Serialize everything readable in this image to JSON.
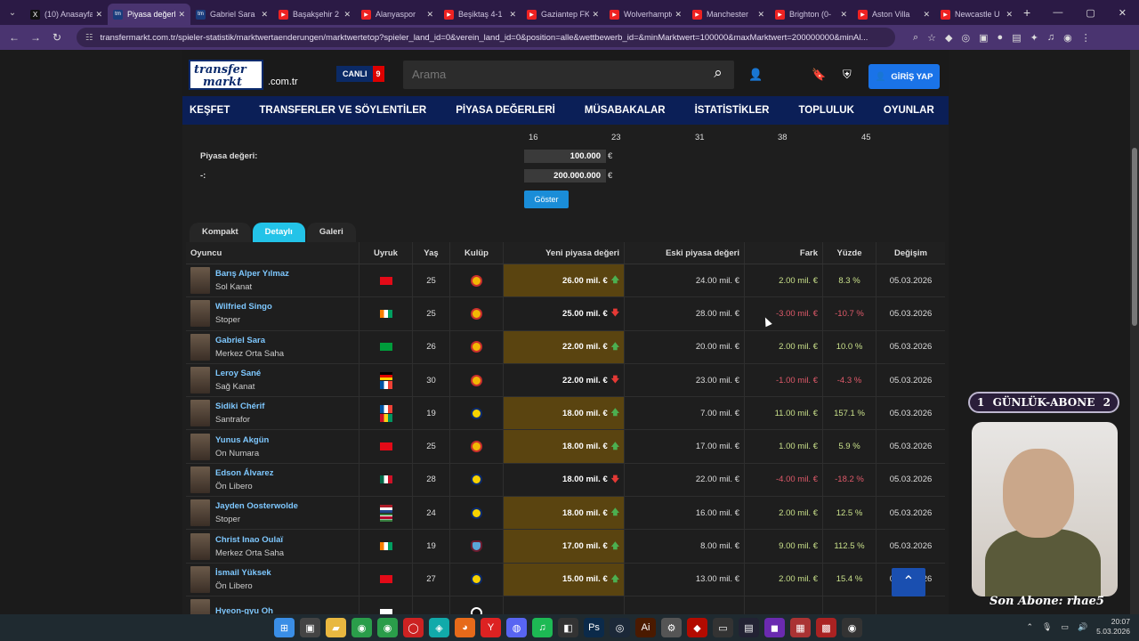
{
  "tabs": [
    {
      "label": "(10) Anasayfa",
      "favicon": "x"
    },
    {
      "label": "Piyasa değerleri",
      "favicon": "tm",
      "active": true
    },
    {
      "label": "Gabriel Sara",
      "favicon": "tm"
    },
    {
      "label": "Başakşehir 2",
      "favicon": "yt"
    },
    {
      "label": "Alanyaspor",
      "favicon": "yt"
    },
    {
      "label": "Beşiktaş 4-1",
      "favicon": "yt"
    },
    {
      "label": "Gaziantep FK",
      "favicon": "yt"
    },
    {
      "label": "Wolverhampton",
      "favicon": "yt"
    },
    {
      "label": "Manchester",
      "favicon": "yt"
    },
    {
      "label": "Brighton (0-",
      "favicon": "yt"
    },
    {
      "label": "Aston Villa",
      "favicon": "yt"
    },
    {
      "label": "Newcastle U",
      "favicon": "yt"
    }
  ],
  "url": "transfermarkt.com.tr/spieler-statistik/marktwertaenderungen/marktwertetop?spieler_land_id=0&verein_land_id=0&position=alle&wettbewerb_id=&minMarktwert=100000&maxMarktwert=200000000&minAl...",
  "header": {
    "logo_line1": "transfer",
    "logo_line2": "markt",
    "logo_domain": ".com.tr",
    "live_label": "CANLI",
    "live_count": "9",
    "search_placeholder": "Arama",
    "login_label": "GİRİŞ YAP"
  },
  "nav": [
    "KEŞFET",
    "TRANSFERLER VE SÖYLENTİLER",
    "PİYASA DEĞERLERİ",
    "MÜSABAKALAR",
    "İSTATİSTİKLER",
    "TOPLULUK",
    "OYUNLAR"
  ],
  "filter": {
    "ticks": [
      "16",
      "23",
      "31",
      "38",
      "45"
    ],
    "market_label": "Piyasa değeri:",
    "range_sep": "-:",
    "min_value": "100.000",
    "max_value": "200.000.000",
    "currency": "€",
    "show_button": "Göster"
  },
  "view_tabs": [
    "Kompakt",
    "Detaylı",
    "Galeri"
  ],
  "columns": [
    "Oyuncu",
    "Uyruk",
    "Yaş",
    "Kulüp",
    "Yeni piyasa değeri",
    "Eski piyasa değeri",
    "Fark",
    "Yüzde",
    "Değişim"
  ],
  "rows": [
    {
      "name": "Barış Alper Yılmaz",
      "pos": "Sol Kanat",
      "flags": [
        "tr"
      ],
      "age": "25",
      "club": "gs",
      "new": "26.00 mil. €",
      "dir": "up",
      "hl": true,
      "old": "24.00 mil. €",
      "diff": "2.00 mil. €",
      "pct": "8.3 %",
      "date": "05.03.2026"
    },
    {
      "name": "Wilfried Singo",
      "pos": "Stoper",
      "flags": [
        "ci"
      ],
      "age": "25",
      "club": "gs",
      "new": "25.00 mil. €",
      "dir": "down",
      "hl": false,
      "old": "28.00 mil. €",
      "diff": "-3.00 mil. €",
      "pct": "-10.7 %",
      "date": "05.03.2026"
    },
    {
      "name": "Gabriel Sara",
      "pos": "Merkez Orta Saha",
      "flags": [
        "br"
      ],
      "age": "26",
      "club": "gs",
      "new": "22.00 mil. €",
      "dir": "up",
      "hl": true,
      "old": "20.00 mil. €",
      "diff": "2.00 mil. €",
      "pct": "10.0 %",
      "date": "05.03.2026"
    },
    {
      "name": "Leroy Sané",
      "pos": "Sağ Kanat",
      "flags": [
        "de",
        "fr"
      ],
      "age": "30",
      "club": "gs",
      "new": "22.00 mil. €",
      "dir": "down",
      "hl": false,
      "old": "23.00 mil. €",
      "diff": "-1.00 mil. €",
      "pct": "-4.3 %",
      "date": "05.03.2026"
    },
    {
      "name": "Sidiki Chérif",
      "pos": "Santrafor",
      "flags": [
        "fr",
        "gn"
      ],
      "age": "19",
      "club": "fb",
      "new": "18.00 mil. €",
      "dir": "up",
      "hl": true,
      "old": "7.00 mil. €",
      "diff": "11.00 mil. €",
      "pct": "157.1 %",
      "date": "05.03.2026"
    },
    {
      "name": "Yunus Akgün",
      "pos": "On Numara",
      "flags": [
        "tr"
      ],
      "age": "25",
      "club": "gs",
      "new": "18.00 mil. €",
      "dir": "up",
      "hl": true,
      "old": "17.00 mil. €",
      "diff": "1.00 mil. €",
      "pct": "5.9 %",
      "date": "05.03.2026"
    },
    {
      "name": "Edson Álvarez",
      "pos": "Ön Libero",
      "flags": [
        "mx"
      ],
      "age": "28",
      "club": "fb",
      "new": "18.00 mil. €",
      "dir": "down",
      "hl": false,
      "old": "22.00 mil. €",
      "diff": "-4.00 mil. €",
      "pct": "-18.2 %",
      "date": "05.03.2026"
    },
    {
      "name": "Jayden Oosterwolde",
      "pos": "Stoper",
      "flags": [
        "nl",
        "sr"
      ],
      "age": "24",
      "club": "fb",
      "new": "18.00 mil. €",
      "dir": "up",
      "hl": true,
      "old": "16.00 mil. €",
      "diff": "2.00 mil. €",
      "pct": "12.5 %",
      "date": "05.03.2026"
    },
    {
      "name": "Christ Inao Oulaï",
      "pos": "Merkez Orta Saha",
      "flags": [
        "ci"
      ],
      "age": "19",
      "club": "ts",
      "new": "17.00 mil. €",
      "dir": "up",
      "hl": true,
      "old": "8.00 mil. €",
      "diff": "9.00 mil. €",
      "pct": "112.5 %",
      "date": "05.03.2026"
    },
    {
      "name": "İsmail Yüksek",
      "pos": "Ön Libero",
      "flags": [
        "tr"
      ],
      "age": "27",
      "club": "fb",
      "new": "15.00 mil. €",
      "dir": "up",
      "hl": true,
      "old": "13.00 mil. €",
      "diff": "2.00 mil. €",
      "pct": "15.4 %",
      "date": "05.03.2026"
    },
    {
      "name": "Hyeon-gyu Oh",
      "pos": "",
      "flags": [
        "kr"
      ],
      "age": "",
      "club": "bjk",
      "new": "",
      "dir": "",
      "hl": false,
      "old": "",
      "diff": "",
      "pct": "",
      "date": ""
    }
  ],
  "stream": {
    "banner_left": "1",
    "banner_text": "GÜNLÜK-ABONE",
    "banner_right": "2",
    "signature": "Son Abone: rhae5"
  },
  "clock": {
    "time": "20:07",
    "date": "5.03.2026"
  },
  "colors": {
    "nav": "#0b1f57",
    "accent": "#23c3e8",
    "highlight": "#5a4410",
    "login": "#1a73e8"
  }
}
